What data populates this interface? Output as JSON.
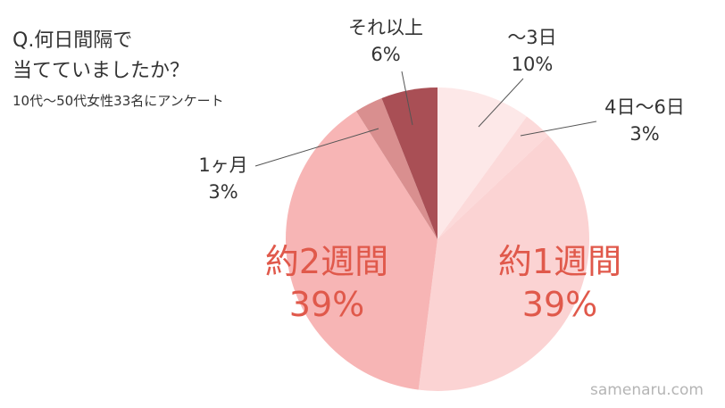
{
  "chart_data": {
    "type": "pie",
    "title_lines": [
      "Q.何日間隔で",
      "当てていましたか？"
    ],
    "subtitle": "10代〜50代女性33名にアンケート",
    "slices": [
      {
        "label": "〜3日",
        "value": 10,
        "value_label": "10%",
        "color": "#fde8e8"
      },
      {
        "label": "4日〜6日",
        "value": 3,
        "value_label": "3%",
        "color": "#fcdada"
      },
      {
        "label": "約1週間",
        "value": 39,
        "value_label": "39%",
        "color": "#fbd3d3"
      },
      {
        "label": "約2週間",
        "value": 39,
        "value_label": "39%",
        "color": "#f7b5b5"
      },
      {
        "label": "1ヶ月",
        "value": 3,
        "value_label": "3%",
        "color": "#d98f8f"
      },
      {
        "label": "それ以上",
        "value": 6,
        "value_label": "6%",
        "color": "#a94f55"
      }
    ],
    "start_angle_deg": 0,
    "direction": "clockwise"
  },
  "watermark": "samenaru.com"
}
